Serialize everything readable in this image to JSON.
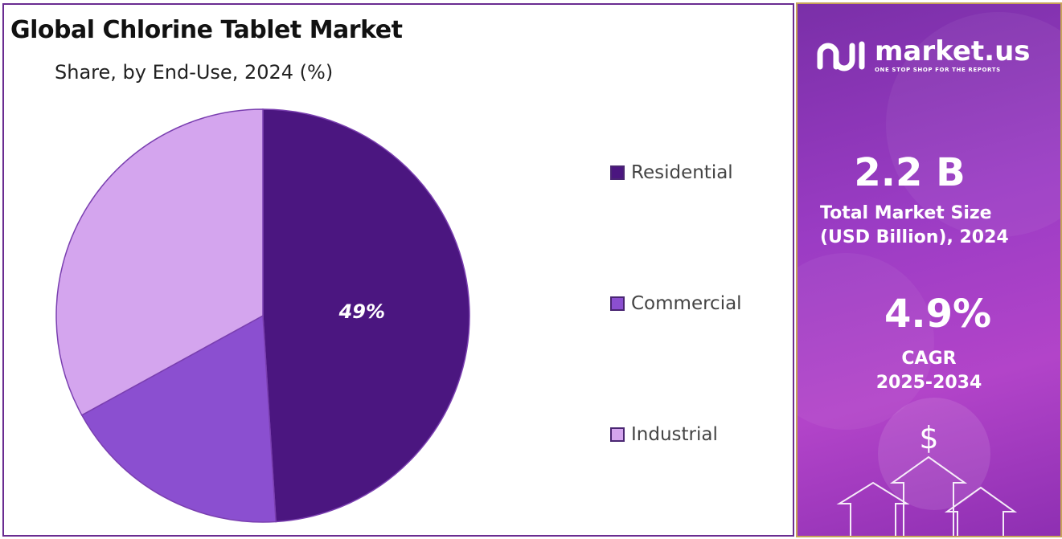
{
  "header": {
    "title": "Global Chlorine Tablet Market",
    "subtitle": "Share, by End-Use, 2024 (%)"
  },
  "chart_data": {
    "type": "pie",
    "title": "Global Chlorine Tablet Market",
    "subtitle": "Share, by End-Use, 2024 (%)",
    "slices": [
      {
        "label": "Residential",
        "value": 49,
        "color": "#4b1680",
        "data_label": "49%"
      },
      {
        "label": "Commercial",
        "value": 18,
        "color": "#8b4fd0",
        "data_label": ""
      },
      {
        "label": "Industrial",
        "value": 33,
        "color": "#d4a5ee",
        "data_label": ""
      }
    ],
    "legend_position": "right"
  },
  "legend": {
    "items": [
      {
        "label": "Residential",
        "color": "#4b1680"
      },
      {
        "label": "Commercial",
        "color": "#8b4fd0"
      },
      {
        "label": "Industrial",
        "color": "#d4a5ee"
      }
    ]
  },
  "sidebar": {
    "brand_name": "market.us",
    "brand_tagline": "ONE STOP SHOP FOR THE REPORTS",
    "market_size_value": "2.2 B",
    "market_size_label_line1": "Total Market Size",
    "market_size_label_line2": "(USD Billion), 2024",
    "cagr_value": "4.9%",
    "cagr_label_line1": "CAGR",
    "cagr_label_line2": "2025-2034",
    "dollar_symbol": "$"
  }
}
